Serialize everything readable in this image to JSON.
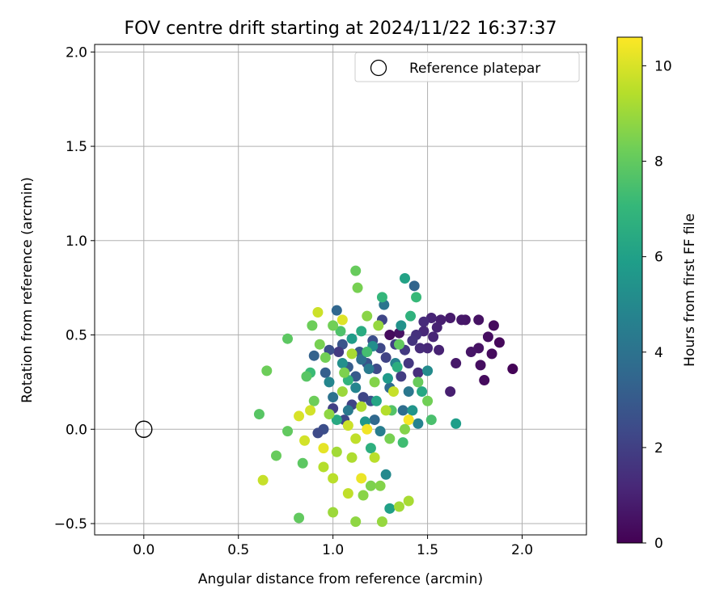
{
  "chart_data": {
    "type": "scatter",
    "title": "FOV centre drift starting at 2024/11/22 16:37:37",
    "xlabel": "Angular distance from reference (arcmin)",
    "ylabel": "Rotation from reference (arcmin)",
    "xlim": [
      -0.26,
      2.34
    ],
    "ylim": [
      -0.56,
      2.04
    ],
    "xticks": [
      "0.0",
      "0.5",
      "1.0",
      "1.5",
      "2.0"
    ],
    "xtick_values": [
      0.0,
      0.5,
      1.0,
      1.5,
      2.0
    ],
    "yticks": [
      "−0.5",
      "0.0",
      "0.5",
      "1.0",
      "1.5",
      "2.0"
    ],
    "ytick_values": [
      -0.5,
      0.0,
      0.5,
      1.0,
      1.5,
      2.0
    ],
    "grid": true,
    "legend": {
      "position": "top-right",
      "entries": [
        {
          "label": "Reference platepar",
          "marker": "open-circle"
        }
      ]
    },
    "reference_point": {
      "x": 0.0,
      "y": 0.0
    },
    "colorbar": {
      "label": "Hours from first FF file",
      "colormap": "viridis",
      "range": [
        0,
        10.6
      ],
      "ticks": [
        "0",
        "2",
        "4",
        "6",
        "8",
        "10"
      ],
      "tick_values": [
        0,
        2,
        4,
        6,
        8,
        10
      ],
      "colors": [
        "#440154",
        "#482878",
        "#3e4a89",
        "#31688e",
        "#26828e",
        "#1f9e89",
        "#35b779",
        "#6ece58",
        "#b5de2b",
        "#fde725"
      ]
    },
    "points": [
      {
        "x": 1.95,
        "y": 0.32,
        "h": 0.1
      },
      {
        "x": 1.88,
        "y": 0.46,
        "h": 0.2
      },
      {
        "x": 1.85,
        "y": 0.55,
        "h": 0.3
      },
      {
        "x": 1.84,
        "y": 0.4,
        "h": 0.3
      },
      {
        "x": 1.82,
        "y": 0.49,
        "h": 0.4
      },
      {
        "x": 1.8,
        "y": 0.26,
        "h": 0.3
      },
      {
        "x": 1.78,
        "y": 0.34,
        "h": 0.4
      },
      {
        "x": 1.77,
        "y": 0.43,
        "h": 0.5
      },
      {
        "x": 1.77,
        "y": 0.58,
        "h": 0.5
      },
      {
        "x": 1.73,
        "y": 0.41,
        "h": 0.6
      },
      {
        "x": 1.7,
        "y": 0.58,
        "h": 0.6
      },
      {
        "x": 1.68,
        "y": 0.58,
        "h": 0.7
      },
      {
        "x": 1.65,
        "y": 0.35,
        "h": 0.7
      },
      {
        "x": 1.62,
        "y": 0.59,
        "h": 0.8
      },
      {
        "x": 1.62,
        "y": 0.2,
        "h": 0.9
      },
      {
        "x": 1.57,
        "y": 0.58,
        "h": 0.9
      },
      {
        "x": 1.56,
        "y": 0.42,
        "h": 1.0
      },
      {
        "x": 1.55,
        "y": 0.54,
        "h": 1.0
      },
      {
        "x": 1.53,
        "y": 0.49,
        "h": 1.1
      },
      {
        "x": 1.52,
        "y": 0.59,
        "h": 1.1
      },
      {
        "x": 1.5,
        "y": 0.43,
        "h": 1.2
      },
      {
        "x": 1.48,
        "y": 0.52,
        "h": 1.2
      },
      {
        "x": 1.48,
        "y": 0.57,
        "h": 1.3
      },
      {
        "x": 1.46,
        "y": 0.43,
        "h": 1.3
      },
      {
        "x": 1.45,
        "y": 0.3,
        "h": 1.4
      },
      {
        "x": 1.44,
        "y": 0.5,
        "h": 1.5
      },
      {
        "x": 1.42,
        "y": 0.47,
        "h": 1.6
      },
      {
        "x": 1.4,
        "y": 0.35,
        "h": 1.7
      },
      {
        "x": 1.38,
        "y": 0.42,
        "h": 1.8
      },
      {
        "x": 1.36,
        "y": 0.28,
        "h": 1.9
      },
      {
        "x": 1.35,
        "y": 0.51,
        "h": 0.5
      },
      {
        "x": 1.33,
        "y": 0.45,
        "h": 2.0
      },
      {
        "x": 1.3,
        "y": 0.5,
        "h": 0.3
      },
      {
        "x": 1.28,
        "y": 0.38,
        "h": 2.1
      },
      {
        "x": 1.26,
        "y": 0.58,
        "h": 2.2
      },
      {
        "x": 1.25,
        "y": 0.43,
        "h": 2.3
      },
      {
        "x": 1.23,
        "y": 0.32,
        "h": 2.4
      },
      {
        "x": 1.21,
        "y": 0.47,
        "h": 2.5
      },
      {
        "x": 1.2,
        "y": 0.15,
        "h": 2.6
      },
      {
        "x": 1.18,
        "y": 0.35,
        "h": 2.7
      },
      {
        "x": 1.16,
        "y": 0.17,
        "h": 2.2
      },
      {
        "x": 1.14,
        "y": 0.41,
        "h": 2.9
      },
      {
        "x": 1.12,
        "y": 0.28,
        "h": 3.0
      },
      {
        "x": 1.1,
        "y": 0.13,
        "h": 2.1
      },
      {
        "x": 1.08,
        "y": 0.33,
        "h": 3.1
      },
      {
        "x": 1.06,
        "y": 0.05,
        "h": 2.3
      },
      {
        "x": 1.05,
        "y": 0.45,
        "h": 2.8
      },
      {
        "x": 1.03,
        "y": 0.41,
        "h": 1.8
      },
      {
        "x": 1.0,
        "y": 0.11,
        "h": 2.0
      },
      {
        "x": 0.98,
        "y": 0.42,
        "h": 2.6
      },
      {
        "x": 0.96,
        "y": 0.3,
        "h": 3.2
      },
      {
        "x": 0.95,
        "y": 0.0,
        "h": 2.5
      },
      {
        "x": 0.92,
        "y": -0.02,
        "h": 2.4
      },
      {
        "x": 0.9,
        "y": 0.39,
        "h": 3.3
      },
      {
        "x": 1.02,
        "y": 0.63,
        "h": 3.5
      },
      {
        "x": 1.43,
        "y": 0.76,
        "h": 3.4
      },
      {
        "x": 1.22,
        "y": 0.05,
        "h": 3.6
      },
      {
        "x": 1.3,
        "y": 0.22,
        "h": 3.7
      },
      {
        "x": 1.37,
        "y": 0.1,
        "h": 3.8
      },
      {
        "x": 1.15,
        "y": 0.37,
        "h": 3.9
      },
      {
        "x": 1.0,
        "y": 0.17,
        "h": 4.0
      },
      {
        "x": 1.27,
        "y": 0.66,
        "h": 4.1
      },
      {
        "x": 1.4,
        "y": 0.2,
        "h": 4.2
      },
      {
        "x": 1.08,
        "y": 0.1,
        "h": 4.3
      },
      {
        "x": 1.19,
        "y": 0.32,
        "h": 4.4
      },
      {
        "x": 1.25,
        "y": -0.01,
        "h": 4.5
      },
      {
        "x": 1.33,
        "y": 0.35,
        "h": 4.6
      },
      {
        "x": 1.45,
        "y": 0.03,
        "h": 4.7
      },
      {
        "x": 1.12,
        "y": 0.22,
        "h": 4.8
      },
      {
        "x": 0.98,
        "y": 0.25,
        "h": 4.9
      },
      {
        "x": 1.28,
        "y": -0.24,
        "h": 5.0
      },
      {
        "x": 1.5,
        "y": 0.31,
        "h": 5.1
      },
      {
        "x": 1.21,
        "y": 0.44,
        "h": 5.2
      },
      {
        "x": 1.05,
        "y": 0.35,
        "h": 5.3
      },
      {
        "x": 1.36,
        "y": 0.55,
        "h": 5.4
      },
      {
        "x": 1.42,
        "y": 0.1,
        "h": 5.5
      },
      {
        "x": 1.17,
        "y": 0.04,
        "h": 5.6
      },
      {
        "x": 1.29,
        "y": 0.27,
        "h": 5.7
      },
      {
        "x": 1.1,
        "y": 0.48,
        "h": 5.8
      },
      {
        "x": 1.65,
        "y": 0.03,
        "h": 5.9
      },
      {
        "x": 1.3,
        "y": -0.42,
        "h": 6.0
      },
      {
        "x": 1.38,
        "y": 0.8,
        "h": 6.1
      },
      {
        "x": 1.23,
        "y": 0.15,
        "h": 6.2
      },
      {
        "x": 1.47,
        "y": 0.2,
        "h": 6.3
      },
      {
        "x": 1.02,
        "y": 0.05,
        "h": 6.4
      },
      {
        "x": 1.15,
        "y": 0.52,
        "h": 6.5
      },
      {
        "x": 1.34,
        "y": 0.33,
        "h": 6.6
      },
      {
        "x": 1.2,
        "y": -0.1,
        "h": 6.7
      },
      {
        "x": 1.41,
        "y": 0.6,
        "h": 6.8
      },
      {
        "x": 1.08,
        "y": 0.26,
        "h": 6.9
      },
      {
        "x": 1.26,
        "y": 0.7,
        "h": 7.0
      },
      {
        "x": 1.44,
        "y": 0.7,
        "h": 7.1
      },
      {
        "x": 0.88,
        "y": 0.3,
        "h": 7.2
      },
      {
        "x": 1.37,
        "y": -0.07,
        "h": 7.3
      },
      {
        "x": 1.18,
        "y": 0.41,
        "h": 7.4
      },
      {
        "x": 1.52,
        "y": 0.05,
        "h": 7.5
      },
      {
        "x": 1.04,
        "y": 0.52,
        "h": 7.6
      },
      {
        "x": 1.31,
        "y": 0.1,
        "h": 7.7
      },
      {
        "x": 0.61,
        "y": 0.08,
        "h": 7.8
      },
      {
        "x": 0.76,
        "y": 0.48,
        "h": 7.9
      },
      {
        "x": 0.82,
        "y": -0.47,
        "h": 8.0
      },
      {
        "x": 0.7,
        "y": -0.14,
        "h": 8.1
      },
      {
        "x": 0.65,
        "y": 0.31,
        "h": 8.2
      },
      {
        "x": 0.76,
        "y": -0.01,
        "h": 8.0
      },
      {
        "x": 0.84,
        "y": -0.18,
        "h": 7.9
      },
      {
        "x": 1.12,
        "y": 0.84,
        "h": 8.1
      },
      {
        "x": 0.89,
        "y": 0.55,
        "h": 8.2
      },
      {
        "x": 1.0,
        "y": 0.55,
        "h": 8.3
      },
      {
        "x": 1.13,
        "y": 0.75,
        "h": 8.4
      },
      {
        "x": 1.2,
        "y": -0.3,
        "h": 8.5
      },
      {
        "x": 1.25,
        "y": -0.3,
        "h": 8.6
      },
      {
        "x": 1.16,
        "y": -0.35,
        "h": 8.7
      },
      {
        "x": 1.12,
        "y": -0.49,
        "h": 8.8
      },
      {
        "x": 1.26,
        "y": -0.49,
        "h": 8.9
      },
      {
        "x": 1.0,
        "y": -0.44,
        "h": 9.0
      },
      {
        "x": 1.35,
        "y": -0.41,
        "h": 9.1
      },
      {
        "x": 1.4,
        "y": -0.38,
        "h": 9.2
      },
      {
        "x": 1.1,
        "y": -0.15,
        "h": 9.3
      },
      {
        "x": 0.95,
        "y": -0.2,
        "h": 9.4
      },
      {
        "x": 1.0,
        "y": -0.26,
        "h": 9.5
      },
      {
        "x": 1.08,
        "y": -0.34,
        "h": 9.6
      },
      {
        "x": 0.63,
        "y": -0.27,
        "h": 9.7
      },
      {
        "x": 0.92,
        "y": 0.62,
        "h": 9.8
      },
      {
        "x": 0.85,
        "y": -0.06,
        "h": 9.9
      },
      {
        "x": 0.82,
        "y": 0.07,
        "h": 10.0
      },
      {
        "x": 1.05,
        "y": 0.58,
        "h": 10.1
      },
      {
        "x": 0.95,
        "y": -0.1,
        "h": 10.2
      },
      {
        "x": 1.15,
        "y": -0.26,
        "h": 10.3
      },
      {
        "x": 1.18,
        "y": 0.0,
        "h": 10.4
      },
      {
        "x": 1.4,
        "y": 0.05,
        "h": 10.5
      },
      {
        "x": 0.98,
        "y": 0.08,
        "h": 8.8
      },
      {
        "x": 1.05,
        "y": 0.2,
        "h": 9.0
      },
      {
        "x": 1.1,
        "y": 0.4,
        "h": 9.2
      },
      {
        "x": 1.22,
        "y": 0.25,
        "h": 8.6
      },
      {
        "x": 1.3,
        "y": -0.05,
        "h": 8.4
      },
      {
        "x": 0.9,
        "y": 0.15,
        "h": 8.2
      },
      {
        "x": 0.86,
        "y": 0.28,
        "h": 7.8
      },
      {
        "x": 1.35,
        "y": 0.45,
        "h": 8.0
      },
      {
        "x": 1.28,
        "y": 0.1,
        "h": 9.4
      },
      {
        "x": 1.12,
        "y": -0.05,
        "h": 9.6
      },
      {
        "x": 1.06,
        "y": 0.3,
        "h": 8.5
      },
      {
        "x": 0.96,
        "y": 0.38,
        "h": 8.3
      },
      {
        "x": 1.18,
        "y": 0.6,
        "h": 8.7
      },
      {
        "x": 1.45,
        "y": 0.25,
        "h": 8.1
      },
      {
        "x": 1.24,
        "y": 0.55,
        "h": 8.9
      },
      {
        "x": 1.02,
        "y": -0.12,
        "h": 9.1
      },
      {
        "x": 1.15,
        "y": 0.12,
        "h": 9.3
      },
      {
        "x": 1.38,
        "y": 0.0,
        "h": 8.6
      },
      {
        "x": 0.93,
        "y": 0.45,
        "h": 8.4
      },
      {
        "x": 1.32,
        "y": 0.2,
        "h": 9.7
      },
      {
        "x": 1.08,
        "y": 0.02,
        "h": 9.8
      },
      {
        "x": 0.88,
        "y": 0.1,
        "h": 9.9
      },
      {
        "x": 1.22,
        "y": -0.15,
        "h": 9.5
      },
      {
        "x": 1.5,
        "y": 0.15,
        "h": 8.3
      }
    ]
  }
}
